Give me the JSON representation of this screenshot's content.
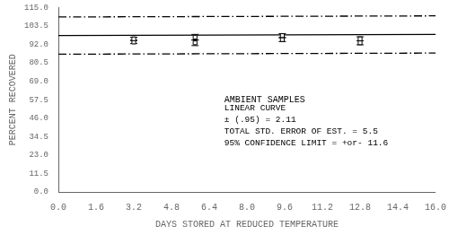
{
  "chart_data": {
    "type": "line",
    "xlabel": "DAYS STORED AT REDUCED TEMPERATURE",
    "ylabel": "PERCENT RECOVERED",
    "xlim": [
      0.0,
      16.0
    ],
    "ylim": [
      0.0,
      115.0
    ],
    "xticks": [
      {
        "value": 0,
        "label": "0.0"
      },
      1.6,
      3.2,
      4.8,
      6.4,
      {
        "value": 8,
        "label": "8.0"
      },
      9.6,
      11.2,
      12.8,
      14.4,
      {
        "value": 16,
        "label": "16.0"
      }
    ],
    "yticks": [
      {
        "value": 0,
        "label": "0.0"
      },
      11.5,
      {
        "value": 23,
        "label": "23.0"
      },
      34.5,
      {
        "value": 46,
        "label": "46.0"
      },
      57.5,
      {
        "value": 69,
        "label": "69.0"
      },
      80.5,
      {
        "value": 92,
        "label": "92.0"
      },
      103.5,
      {
        "value": 115,
        "label": "115.0"
      }
    ],
    "grid": false,
    "series": [
      {
        "type": "line",
        "color": "#000000",
        "line_style": "solid",
        "x": [
          0.0,
          16.0
        ],
        "values": [
          97.5,
          98.2
        ]
      },
      {
        "type": "line",
        "color": "#000000",
        "line_style": "dashdot",
        "x": [
          0.0,
          16.0
        ],
        "values": [
          109.1,
          109.8
        ]
      },
      {
        "type": "line",
        "color": "#000000",
        "line_style": "dashdot",
        "x": [
          0.0,
          16.0
        ],
        "values": [
          85.9,
          86.6
        ]
      },
      {
        "type": "scatter",
        "color": "#000000",
        "marker": "square",
        "x": [
          3.2,
          3.2,
          5.8,
          5.8,
          9.5,
          9.5,
          12.8,
          12.8
        ],
        "values": [
          93.5,
          95.5,
          93.0,
          96.5,
          95.0,
          97.5,
          93.0,
          95.5
        ],
        "yerr": [
          1.0,
          1.0,
          1.75,
          1.75,
          1.25,
          1.25,
          1.25,
          1.25
        ]
      }
    ],
    "annotations": [
      "AMBIENT SAMPLES",
      "LINEAR CURVE\n± (.95) = 2.11\nTOTAL STD. ERROR OF EST. = 5.5\n95% CONFIDENCE LIMIT = +or- 11.6"
    ]
  }
}
